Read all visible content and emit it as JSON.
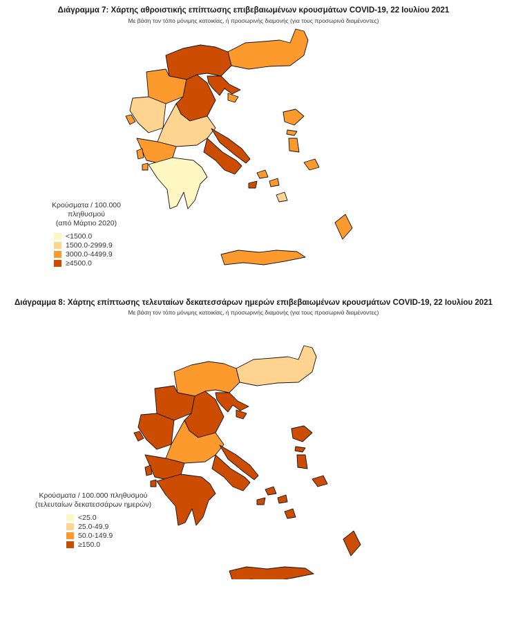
{
  "colors": [
    "#FFF7C2",
    "#FED490",
    "#FD9A2E",
    "#CC4C02"
  ],
  "maps": [
    {
      "title": "Διάγραμμα 7: Χάρτης αθροιστικής επίπτωσης επιβεβαιωμένων κρουσμάτων COVID-19, 22 Ιουλίου 2021",
      "subtitle": "Με βάση τον τόπο μόνιμης κατοικίας, ή προσωρινής διαμονής (για τους προσωρινά διαμένοντες)",
      "legend_title_1": "Κρούσματα / 100.000 πληθυσμού",
      "legend_title_2": "(από Μάρτιο 2020)",
      "legend_items": [
        "<1500.0",
        "1500.0-2999.9",
        "3000.0-4499.9",
        "≥4500.0"
      ],
      "region_classes": [
        2,
        3,
        3,
        2,
        1,
        3,
        1,
        3,
        3,
        2,
        0,
        2,
        2,
        2,
        2,
        2,
        2,
        2,
        2,
        2,
        2,
        3,
        2,
        2,
        1
      ]
    },
    {
      "title": "Διάγραμμα 8: Χάρτης επίπτωσης τελευταίων δεκατεσσάρων ημερών επιβεβαιωμένων κρουσμάτων COVID-19, 22 Ιουλίου 2021",
      "subtitle": "Με βάση τον τόπο μόνιμης κατοικίας, ή προσωρινής διαμονής (για τους προσωρινά διαμένοντες)",
      "legend_title_1": "Κρούσματα / 100.000 πληθυσμού",
      "legend_title_2": "(τελευταίων δεκατεσσάρων ημερών)",
      "legend_items": [
        "<25.0",
        "25.0-49.9",
        "50.0-149.9",
        "≥150.0"
      ],
      "region_classes": [
        1,
        2,
        3,
        3,
        3,
        3,
        2,
        3,
        3,
        3,
        3,
        3,
        3,
        3,
        3,
        3,
        3,
        3,
        3,
        3,
        3,
        3,
        3,
        3,
        3
      ]
    }
  ]
}
